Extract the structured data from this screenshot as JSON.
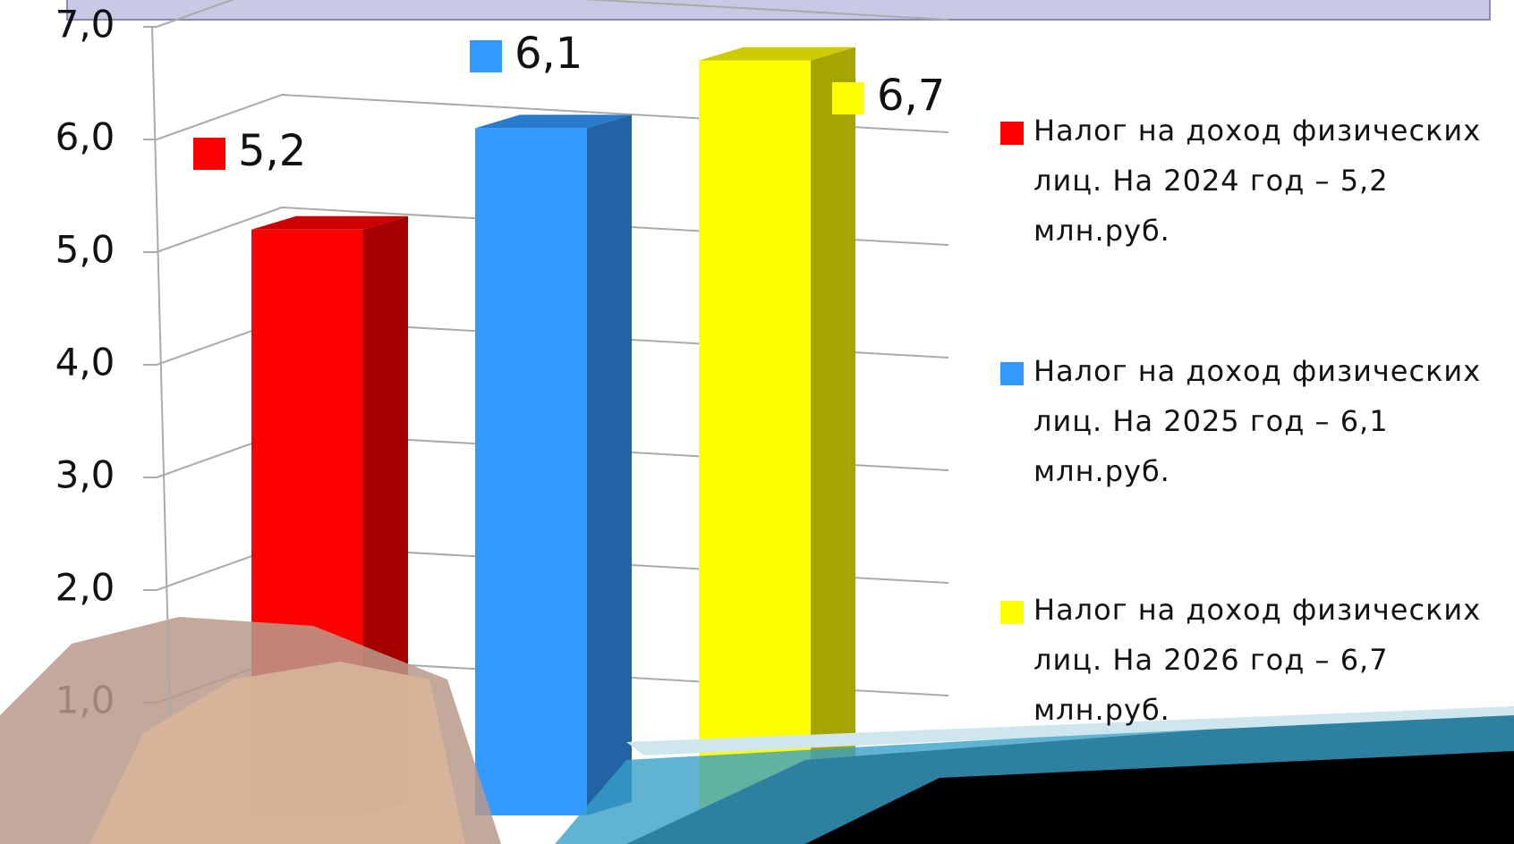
{
  "chart_data": {
    "type": "bar3d",
    "series": [
      {
        "name": "Налог на доход физических лиц. На 2024 год – 5,2 млн.руб.",
        "color": "#ff0000",
        "values": [
          5.2
        ],
        "value_labels": [
          "5,2"
        ]
      },
      {
        "name": "Налог на доход физических лиц. На 2025 год – 6,1 млн.руб.",
        "color": "#3399ff",
        "values": [
          6.1
        ],
        "value_labels": [
          "6,1"
        ]
      },
      {
        "name": "Налог на доход физических лиц. На 2026 год – 6,7 млн.руб.",
        "color": "#ffff00",
        "values": [
          6.7
        ],
        "value_labels": [
          "6,7"
        ]
      }
    ],
    "ylim": [
      0,
      7
    ],
    "yticks": [
      {
        "value": 1,
        "label": "1,0"
      },
      {
        "value": 2,
        "label": "2,0"
      },
      {
        "value": 3,
        "label": "3,0"
      },
      {
        "value": 4,
        "label": "4,0"
      },
      {
        "value": 5,
        "label": "5,0"
      },
      {
        "value": 6,
        "label": "6,0"
      },
      {
        "value": 7,
        "label": "7,0"
      }
    ],
    "grid": true
  }
}
